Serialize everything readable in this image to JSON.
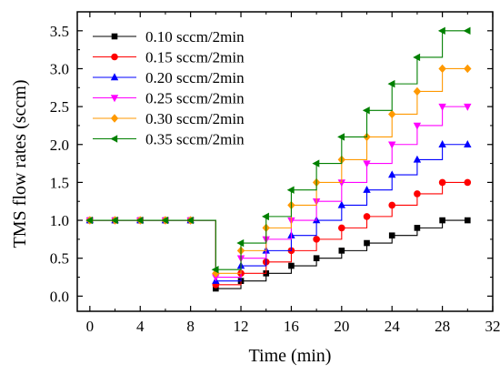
{
  "chart_data": {
    "type": "line",
    "step": "post",
    "xlabel": "Time (min)",
    "ylabel": "TMS flow rates (sccm)",
    "xlim": [
      -1,
      32
    ],
    "ylim": [
      -0.2,
      3.75
    ],
    "xticks": [
      0,
      4,
      8,
      12,
      16,
      20,
      24,
      28,
      32
    ],
    "xtick_labels": [
      "0",
      "4",
      "8",
      "12",
      "16",
      "20",
      "24",
      "28",
      "32"
    ],
    "yticks": [
      0.0,
      0.5,
      1.0,
      1.5,
      2.0,
      2.5,
      3.0,
      3.5
    ],
    "ytick_labels": [
      "0.0",
      "0.5",
      "1.0",
      "1.5",
      "2.0",
      "2.5",
      "3.0",
      "3.5"
    ],
    "grid": false,
    "legend_position": "top-left",
    "x": [
      0,
      2,
      4,
      6,
      8,
      10,
      12,
      14,
      16,
      18,
      20,
      22,
      24,
      26,
      28,
      30
    ],
    "series": [
      {
        "name": "0.10 sccm/2min",
        "color": "#000000",
        "marker": "square",
        "values": [
          1.0,
          1.0,
          1.0,
          1.0,
          1.0,
          0.1,
          0.2,
          0.3,
          0.4,
          0.5,
          0.6,
          0.7,
          0.8,
          0.9,
          1.0,
          1.0
        ]
      },
      {
        "name": "0.15 sccm/2min",
        "color": "#ff0000",
        "marker": "circle",
        "values": [
          1.0,
          1.0,
          1.0,
          1.0,
          1.0,
          0.15,
          0.3,
          0.45,
          0.6,
          0.75,
          0.9,
          1.05,
          1.2,
          1.35,
          1.5,
          1.5
        ]
      },
      {
        "name": "0.20 sccm/2min",
        "color": "#0000ff",
        "marker": "triangle-up",
        "values": [
          1.0,
          1.0,
          1.0,
          1.0,
          1.0,
          0.2,
          0.4,
          0.6,
          0.8,
          1.0,
          1.2,
          1.4,
          1.6,
          1.8,
          2.0,
          2.0
        ]
      },
      {
        "name": "0.25 sccm/2min",
        "color": "#ff00ff",
        "marker": "triangle-down",
        "values": [
          1.0,
          1.0,
          1.0,
          1.0,
          1.0,
          0.25,
          0.5,
          0.75,
          1.0,
          1.25,
          1.5,
          1.75,
          2.0,
          2.25,
          2.5,
          2.5
        ]
      },
      {
        "name": "0.30 sccm/2min",
        "color": "#ff9900",
        "marker": "diamond",
        "values": [
          1.0,
          1.0,
          1.0,
          1.0,
          1.0,
          0.3,
          0.6,
          0.9,
          1.2,
          1.5,
          1.8,
          2.1,
          2.4,
          2.7,
          3.0,
          3.0
        ]
      },
      {
        "name": "0.35 sccm/2min",
        "color": "#008000",
        "marker": "triangle-left",
        "values": [
          1.0,
          1.0,
          1.0,
          1.0,
          1.0,
          0.35,
          0.7,
          1.05,
          1.4,
          1.75,
          2.1,
          2.45,
          2.8,
          3.15,
          3.5,
          3.5
        ]
      }
    ]
  }
}
